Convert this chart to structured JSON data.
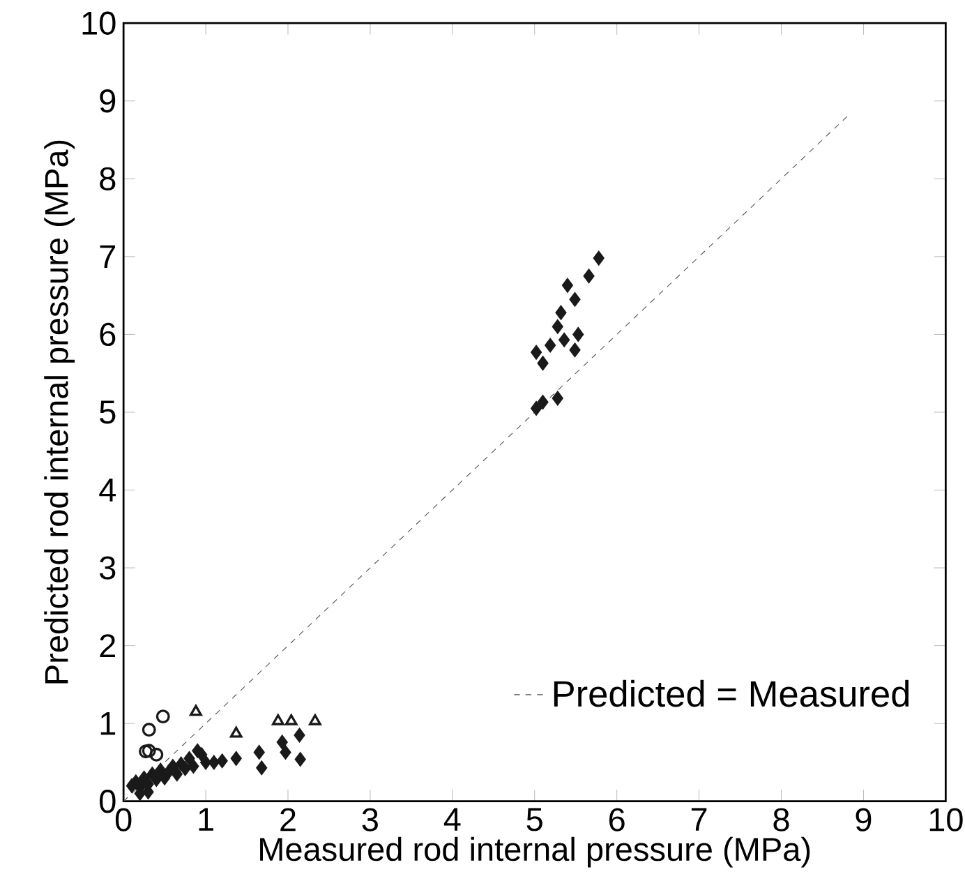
{
  "chart_data": {
    "type": "scatter",
    "xlabel": "Measured rod internal pressure (MPa)",
    "ylabel": "Predicted rod internal pressure (MPa)",
    "xlim": [
      0,
      10
    ],
    "ylim": [
      0,
      10
    ],
    "xticks": [
      0,
      1,
      2,
      3,
      4,
      5,
      6,
      7,
      8,
      9,
      10
    ],
    "yticks": [
      0,
      1,
      2,
      3,
      4,
      5,
      6,
      7,
      8,
      9,
      10
    ],
    "grid": false,
    "legend": "bottom right",
    "series": [
      {
        "marker": "circle",
        "color": "#1a1a1a",
        "x": [
          0.31,
          0.48,
          0.27,
          0.31,
          0.4
        ],
        "values": [
          0.92,
          1.09,
          0.64,
          0.65,
          0.6
        ]
      },
      {
        "marker": "triangle",
        "color": "#1a1a1a",
        "x": [
          0.88,
          1.37,
          1.88,
          2.04,
          2.33
        ],
        "values": [
          1.15,
          0.87,
          1.03,
          1.03,
          1.03
        ]
      },
      {
        "marker": "diamond",
        "color": "#1a1a1a",
        "x": [
          0.1,
          0.15,
          0.2,
          0.25,
          0.3,
          0.35,
          0.4,
          0.45,
          0.5,
          0.55,
          0.6,
          0.65,
          0.7,
          0.75,
          0.8,
          0.85,
          0.9,
          0.95,
          1.0,
          1.1,
          0.3,
          0.2,
          1.2,
          1.37,
          1.65,
          1.68,
          1.93,
          1.97,
          2.14,
          2.15,
          5.78,
          5.66,
          5.4,
          5.49,
          5.32,
          5.28,
          5.53,
          5.49,
          5.02,
          5.19,
          5.36,
          5.1,
          5.1,
          5.28,
          5.02
        ],
        "values": [
          0.2,
          0.25,
          0.18,
          0.3,
          0.22,
          0.35,
          0.28,
          0.4,
          0.3,
          0.38,
          0.45,
          0.35,
          0.48,
          0.42,
          0.55,
          0.45,
          0.65,
          0.6,
          0.5,
          0.5,
          0.12,
          0.1,
          0.52,
          0.55,
          0.63,
          0.43,
          0.76,
          0.63,
          0.85,
          0.54,
          6.98,
          6.75,
          6.63,
          6.45,
          6.28,
          6.1,
          6.0,
          5.8,
          5.77,
          5.86,
          5.93,
          5.63,
          5.13,
          5.18,
          5.05
        ]
      },
      {
        "type": "line",
        "name": "Predicted = Measured",
        "marker": "none",
        "line_style": "dashed",
        "color": "#555555",
        "x": [
          0,
          8.8
        ],
        "values": [
          0,
          8.8
        ]
      }
    ]
  }
}
